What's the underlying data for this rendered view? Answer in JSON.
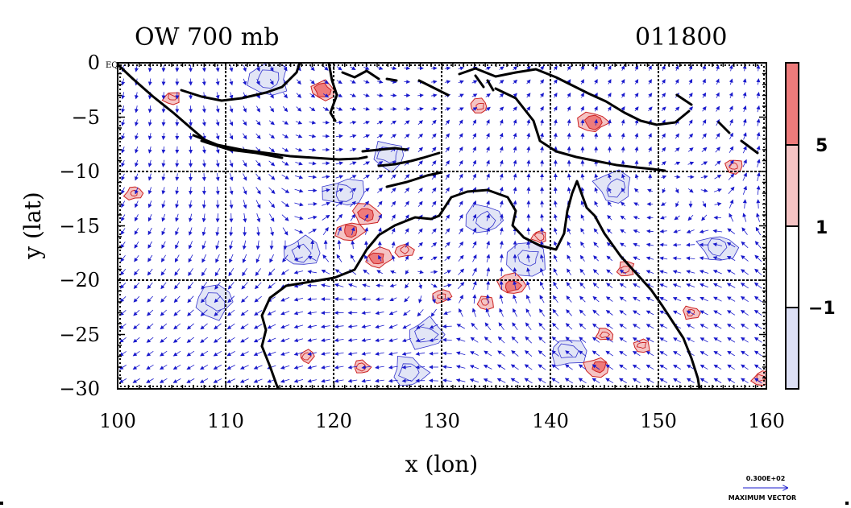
{
  "chart_data": {
    "type": "heatmap",
    "title_left": "OW 700 mb",
    "title_right": "011800",
    "xlabel": "x (lon)",
    "ylabel": "y (lat)",
    "xlim": [
      100,
      160
    ],
    "ylim": [
      -30,
      0
    ],
    "x_ticks": [
      100,
      110,
      120,
      130,
      140,
      150,
      160
    ],
    "x_tick_labels": [
      "100",
      "110",
      "120",
      "130",
      "140",
      "150",
      "160"
    ],
    "y_ticks": [
      0,
      -5,
      -10,
      -15,
      -20,
      -25,
      -30
    ],
    "y_tick_labels": [
      "0",
      "−5",
      "−10",
      "−15",
      "−20",
      "−25",
      "−30"
    ],
    "equator_label": "EQ",
    "gridlines_lon": [
      110,
      120,
      130,
      140,
      150
    ],
    "gridlines_lat": [
      -10,
      -20
    ],
    "colorbar": {
      "levels": [
        -1,
        1,
        5
      ],
      "level_labels": [
        "−1",
        "1",
        "5"
      ],
      "colors": [
        "#dde0f5",
        "#ffffff",
        "#f5c4c4",
        "#ee7b7b"
      ]
    },
    "vector_legend": {
      "value_label": "0.300E+02",
      "caption": "MAXIMUM VECTOR"
    },
    "colors": {
      "vectors": "#1a1acc",
      "positive_contour": "#cc2222",
      "negative_contour": "#3333cc",
      "coastline": "#000000"
    },
    "positive_ow_features": [
      {
        "lon": 121.5,
        "lat": -15.5,
        "level": 5
      },
      {
        "lon": 124,
        "lat": -18,
        "level": 5
      },
      {
        "lon": 126.5,
        "lat": -17.2,
        "level": 1
      },
      {
        "lon": 123,
        "lat": -14,
        "level": 5
      },
      {
        "lon": 136.5,
        "lat": -20.5,
        "level": 5
      },
      {
        "lon": 134,
        "lat": -22,
        "level": 1
      },
      {
        "lon": 139,
        "lat": -16,
        "level": 1
      },
      {
        "lon": 145,
        "lat": -25,
        "level": 1
      },
      {
        "lon": 144.5,
        "lat": -28,
        "level": 5
      },
      {
        "lon": 157,
        "lat": -9.5,
        "level": 1
      },
      {
        "lon": 153,
        "lat": -23,
        "level": 1
      },
      {
        "lon": 147,
        "lat": -19,
        "level": 1
      },
      {
        "lon": 148.5,
        "lat": -26,
        "level": 1
      },
      {
        "lon": 105,
        "lat": -3.2,
        "level": 1
      },
      {
        "lon": 119,
        "lat": -2.5,
        "level": 5
      },
      {
        "lon": 133.5,
        "lat": -4,
        "level": 1
      },
      {
        "lon": 144,
        "lat": -5.5,
        "level": 5
      },
      {
        "lon": 101.5,
        "lat": -12,
        "level": 1
      },
      {
        "lon": 117.5,
        "lat": -27,
        "level": 1
      },
      {
        "lon": 122.5,
        "lat": -28,
        "level": 1
      },
      {
        "lon": 159.5,
        "lat": -29,
        "level": 1
      },
      {
        "lon": 130,
        "lat": -21.5,
        "level": 1
      }
    ],
    "negative_ow_features": [
      {
        "lon": 117,
        "lat": -17.5,
        "level": -1
      },
      {
        "lon": 121,
        "lat": -12,
        "level": -1
      },
      {
        "lon": 128.5,
        "lat": -25,
        "level": -1
      },
      {
        "lon": 134,
        "lat": -14.5,
        "level": -1
      },
      {
        "lon": 138,
        "lat": -18,
        "level": -1
      },
      {
        "lon": 146,
        "lat": -11.5,
        "level": -1
      },
      {
        "lon": 141.5,
        "lat": -26.5,
        "level": -1
      },
      {
        "lon": 125,
        "lat": -8.5,
        "level": -1
      },
      {
        "lon": 155.5,
        "lat": -17,
        "level": -1
      },
      {
        "lon": 114,
        "lat": -1.5,
        "level": -1
      },
      {
        "lon": 109,
        "lat": -22,
        "level": -1
      },
      {
        "lon": 127,
        "lat": -28.5,
        "level": -1
      }
    ]
  }
}
